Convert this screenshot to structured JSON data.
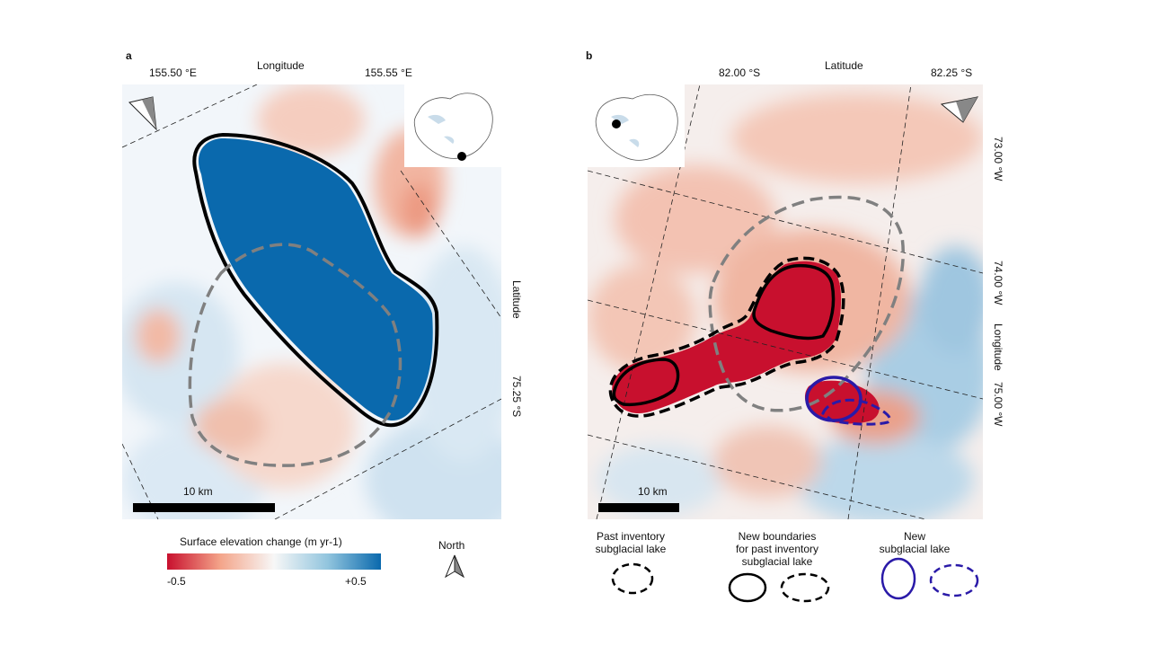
{
  "panel_a": {
    "label": "a",
    "top_axis_title": "Longitude",
    "lon_ticks": [
      "155.50 °E",
      "155.55 °E"
    ],
    "right_axis_title": "Latitude",
    "lat_ticks": [
      "75.25 °S"
    ],
    "scale_bar": "10 km",
    "north_arrow": "north-arrow-icon",
    "inset_marker": "location-dot-icon"
  },
  "panel_b": {
    "label": "b",
    "top_axis_title": "Latitude",
    "lat_ticks": [
      "82.00 °S",
      "82.25 °S"
    ],
    "right_axis_title": "Longitude",
    "lon_ticks": [
      "73.00 °W",
      "74.00 °W",
      "75.00 °W"
    ],
    "scale_bar": "10 km",
    "north_arrow": "north-arrow-icon",
    "inset_marker": "location-dot-icon"
  },
  "colorbar": {
    "title": "Surface elevation change (m yr-1)",
    "min_label": "-0.5",
    "max_label": "+0.5",
    "colors": [
      "#c8102e",
      "#f4a58a",
      "#f7f7f7",
      "#92c5de",
      "#0a69ad"
    ]
  },
  "north_legend": {
    "label": "North"
  },
  "legend": {
    "past_inventory": "Past inventory\nsubglacial lake",
    "new_boundaries": "New boundaries\nfor past inventory\nsubglacial lake",
    "new_lake": "New\nsubglacial lake"
  },
  "colors": {
    "thinning": "#c8102e",
    "thickening": "#0a69ad",
    "past_outline": "#808080",
    "new_lake_outline": "#2a1aa8"
  }
}
